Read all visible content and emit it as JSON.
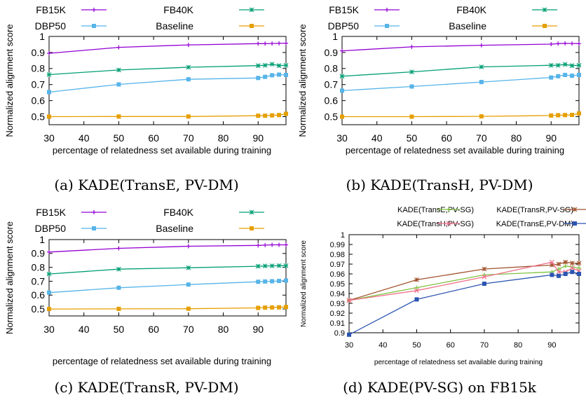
{
  "panels": [
    {
      "id": "a",
      "caption": "(a) KADE(TransE, PV-DM)",
      "chart_data": {
        "type": "line",
        "xlabel": "percentage of relatedness set available during training",
        "ylabel": "Normalized alignment score",
        "xlim": [
          30,
          98
        ],
        "ylim": [
          0.45,
          1.0
        ],
        "xticks": [
          30,
          40,
          50,
          60,
          70,
          80,
          90
        ],
        "yticks": [
          0.5,
          0.6,
          0.7,
          0.8,
          0.9,
          1
        ],
        "ytick_labels": [
          "0.5",
          "0.6",
          "0.7",
          "0.8",
          "0.9",
          "1"
        ],
        "legend": "top",
        "legend_layout": "grid-2x2",
        "series": [
          {
            "name": "FB15K",
            "color": "#9400d3",
            "marker": "plus",
            "x": [
              30,
              50,
              70,
              90,
              92,
              94,
              96,
              98
            ],
            "y": [
              0.895,
              0.932,
              0.947,
              0.955,
              0.955,
              0.956,
              0.957,
              0.958
            ]
          },
          {
            "name": "FB40K",
            "color": "#009e73",
            "marker": "star",
            "x": [
              30,
              50,
              70,
              90,
              92,
              94,
              96,
              98
            ],
            "y": [
              0.762,
              0.791,
              0.808,
              0.818,
              0.82,
              0.827,
              0.818,
              0.82
            ]
          },
          {
            "name": "DBP50",
            "color": "#56b4e9",
            "marker": "square",
            "x": [
              30,
              50,
              70,
              90,
              92,
              94,
              96,
              98
            ],
            "y": [
              0.653,
              0.701,
              0.733,
              0.741,
              0.748,
              0.758,
              0.762,
              0.76
            ]
          },
          {
            "name": "Baseline",
            "color": "#e69f00",
            "marker": "filled-square",
            "x": [
              30,
              50,
              70,
              90,
              92,
              94,
              96,
              98
            ],
            "y": [
              0.5,
              0.501,
              0.501,
              0.506,
              0.506,
              0.508,
              0.51,
              0.518
            ]
          }
        ]
      }
    },
    {
      "id": "b",
      "caption": "(b) KADE(TransH, PV-DM)",
      "chart_data": {
        "type": "line",
        "xlabel": "percentage of relatedness set available during training",
        "ylabel": "Normalized alignment score",
        "xlim": [
          30,
          98
        ],
        "ylim": [
          0.45,
          1.0
        ],
        "xticks": [
          30,
          40,
          50,
          60,
          70,
          80,
          90
        ],
        "yticks": [
          0.5,
          0.6,
          0.7,
          0.8,
          0.9,
          1
        ],
        "ytick_labels": [
          "0.5",
          "0.6",
          "0.7",
          "0.8",
          "0.9",
          "1"
        ],
        "legend": "top",
        "legend_layout": "grid-2x2",
        "series": [
          {
            "name": "FB15K",
            "color": "#9400d3",
            "marker": "plus",
            "x": [
              30,
              50,
              70,
              90,
              92,
              94,
              96,
              98
            ],
            "y": [
              0.91,
              0.935,
              0.945,
              0.952,
              0.955,
              0.957,
              0.956,
              0.955
            ]
          },
          {
            "name": "FB40K",
            "color": "#009e73",
            "marker": "star",
            "x": [
              30,
              50,
              70,
              90,
              92,
              94,
              96,
              98
            ],
            "y": [
              0.752,
              0.779,
              0.81,
              0.82,
              0.82,
              0.826,
              0.818,
              0.82
            ]
          },
          {
            "name": "DBP50",
            "color": "#56b4e9",
            "marker": "square",
            "x": [
              30,
              50,
              70,
              90,
              92,
              94,
              96,
              98
            ],
            "y": [
              0.662,
              0.688,
              0.716,
              0.744,
              0.752,
              0.76,
              0.755,
              0.76
            ]
          },
          {
            "name": "Baseline",
            "color": "#e69f00",
            "marker": "filled-square",
            "x": [
              30,
              50,
              70,
              90,
              92,
              94,
              96,
              98
            ],
            "y": [
              0.5,
              0.5,
              0.502,
              0.507,
              0.509,
              0.51,
              0.511,
              0.52
            ]
          }
        ]
      }
    },
    {
      "id": "c",
      "caption": "(c) KADE(TransR, PV-DM)",
      "chart_data": {
        "type": "line",
        "xlabel": "percentage of relatedness set available during training",
        "ylabel": "Normalized alignment score",
        "xlim": [
          30,
          98
        ],
        "ylim": [
          0.45,
          1.0
        ],
        "xticks": [
          30,
          40,
          50,
          60,
          70,
          80,
          90
        ],
        "yticks": [
          0.5,
          0.6,
          0.7,
          0.8,
          0.9,
          1
        ],
        "ytick_labels": [
          "0.5",
          "0.6",
          "0.7",
          "0.8",
          "0.9",
          "1"
        ],
        "legend": "top",
        "legend_layout": "grid-2x2",
        "series": [
          {
            "name": "FB15K",
            "color": "#9400d3",
            "marker": "plus",
            "x": [
              30,
              50,
              70,
              90,
              92,
              94,
              96,
              98
            ],
            "y": [
              0.91,
              0.937,
              0.952,
              0.958,
              0.96,
              0.962,
              0.962,
              0.962
            ]
          },
          {
            "name": "FB40K",
            "color": "#009e73",
            "marker": "star",
            "x": [
              30,
              50,
              70,
              90,
              92,
              94,
              96,
              98
            ],
            "y": [
              0.752,
              0.787,
              0.797,
              0.808,
              0.81,
              0.811,
              0.812,
              0.812
            ]
          },
          {
            "name": "DBP50",
            "color": "#56b4e9",
            "marker": "square",
            "x": [
              30,
              50,
              70,
              90,
              92,
              94,
              96,
              98
            ],
            "y": [
              0.618,
              0.653,
              0.676,
              0.696,
              0.698,
              0.7,
              0.702,
              0.705
            ]
          },
          {
            "name": "Baseline",
            "color": "#e69f00",
            "marker": "filled-square",
            "x": [
              30,
              50,
              70,
              90,
              92,
              94,
              96,
              98
            ],
            "y": [
              0.5,
              0.501,
              0.502,
              0.508,
              0.51,
              0.511,
              0.512,
              0.514
            ]
          }
        ]
      }
    },
    {
      "id": "d",
      "caption": "(d) KADE(PV-SG) on FB15k",
      "chart_data": {
        "type": "line",
        "xlabel": "percentage of relatedness set available during training",
        "ylabel": "Normalized alignment score",
        "xlim": [
          30,
          98
        ],
        "ylim": [
          0.9,
          1.0
        ],
        "xticks": [
          30,
          40,
          50,
          60,
          70,
          80,
          90
        ],
        "yticks": [
          0.9,
          0.91,
          0.92,
          0.93,
          0.94,
          0.95,
          0.96,
          0.97,
          0.98,
          0.99,
          1
        ],
        "ytick_labels": [
          "0.9",
          "0.91",
          "0.92",
          "0.93",
          "0.94",
          "0.95",
          "0.96",
          "0.97",
          "0.98",
          "0.99",
          "1"
        ],
        "legend": "top",
        "legend_layout": "grid-2x2",
        "series": [
          {
            "name": "KADE(TransE,PV-SG)",
            "color": "#7fc241",
            "marker": "plus",
            "x": [
              30,
              50,
              70,
              90,
              92,
              94,
              96,
              98
            ],
            "y": [
              0.933,
              0.946,
              0.959,
              0.962,
              0.965,
              0.968,
              0.967,
              0.966
            ]
          },
          {
            "name": "KADE(TransR,PV-SG)",
            "color": "#a0522d",
            "marker": "star",
            "x": [
              30,
              50,
              70,
              90,
              92,
              94,
              96,
              98
            ],
            "y": [
              0.933,
              0.954,
              0.965,
              0.969,
              0.97,
              0.972,
              0.971,
              0.971
            ]
          },
          {
            "name": "KADE(TransH,PV-SG)",
            "color": "#f0708a",
            "marker": "cross",
            "x": [
              30,
              50,
              70,
              90,
              92,
              94,
              96,
              98
            ],
            "y": [
              0.933,
              0.943,
              0.957,
              0.972,
              0.962,
              0.962,
              0.966,
              0.963
            ]
          },
          {
            "name": "KADE(TransE,PV-DM)",
            "color": "#2b55b0",
            "marker": "filled-square",
            "x": [
              30,
              50,
              70,
              90,
              92,
              94,
              96,
              98
            ],
            "y": [
              0.898,
              0.934,
              0.95,
              0.959,
              0.958,
              0.96,
              0.962,
              0.96
            ]
          }
        ]
      }
    }
  ]
}
